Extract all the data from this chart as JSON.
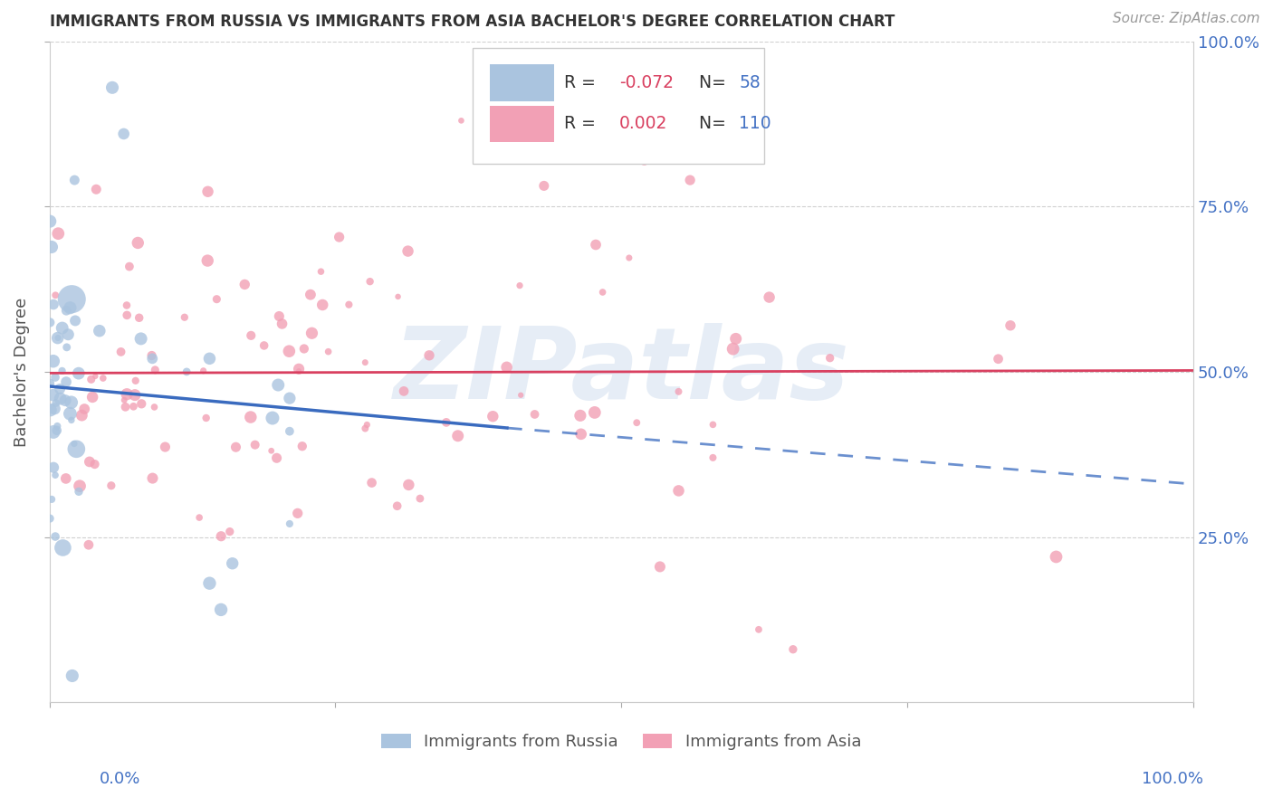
{
  "title": "IMMIGRANTS FROM RUSSIA VS IMMIGRANTS FROM ASIA BACHELOR'S DEGREE CORRELATION CHART",
  "source": "Source: ZipAtlas.com",
  "ylabel": "Bachelor's Degree",
  "watermark": "ZIPatlas",
  "russia_color": "#aac4df",
  "asia_color": "#f2a0b5",
  "trendline_russia_color": "#3a6bbf",
  "trendline_asia_color": "#d94060",
  "background_color": "#ffffff",
  "grid_color": "#d0d0d0",
  "russia_N": 58,
  "asia_N": 110,
  "russia_R": -0.072,
  "asia_R": 0.002,
  "xlim": [
    0.0,
    1.0
  ],
  "ylim": [
    0.0,
    1.0
  ],
  "ytick_values": [
    0.25,
    0.5,
    0.75,
    1.0
  ],
  "ytick_labels": [
    "25.0%",
    "50.0%",
    "75.0%",
    "100.0%"
  ],
  "russia_trend_x0": 0.0,
  "russia_trend_y0": 0.478,
  "russia_trend_x1": 0.4,
  "russia_trend_y1": 0.415,
  "russia_trend_x2": 1.0,
  "russia_trend_y2": 0.33,
  "asia_trend_x0": 0.0,
  "asia_trend_y0": 0.498,
  "asia_trend_x1": 1.0,
  "asia_trend_y1": 0.502
}
